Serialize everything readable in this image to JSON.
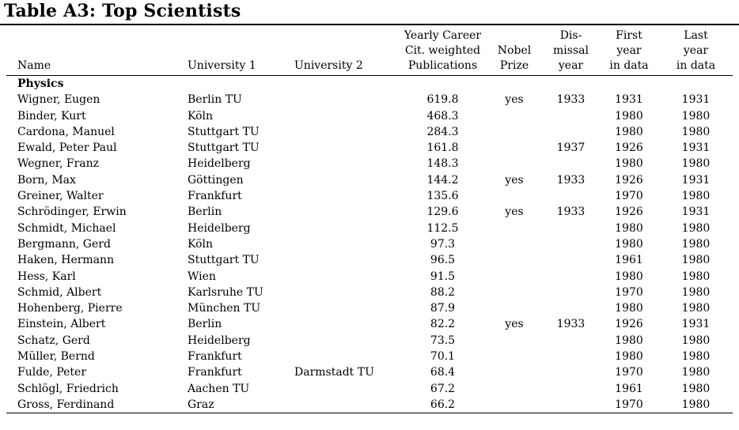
{
  "title": "Table A3: Top Scientists",
  "table": {
    "section": "Physics",
    "columns": [
      {
        "key": "name",
        "label": "Name",
        "align": "left"
      },
      {
        "key": "uni1",
        "label": "University 1",
        "align": "left"
      },
      {
        "key": "uni2",
        "label": "University 2",
        "align": "left"
      },
      {
        "key": "pubs",
        "label": "Yearly Career\nCit. weighted\nPublications",
        "align": "center"
      },
      {
        "key": "nobel",
        "label": "Nobel\nPrize",
        "align": "center"
      },
      {
        "key": "dismissal",
        "label": "Dis-\nmissal\nyear",
        "align": "center"
      },
      {
        "key": "first",
        "label": "First\nyear\nin data",
        "align": "center"
      },
      {
        "key": "last",
        "label": "Last\nyear\nin data",
        "align": "center"
      }
    ],
    "rows": [
      [
        "Wigner, Eugen",
        "Berlin TU",
        "",
        "619.8",
        "yes",
        "1933",
        "1931",
        "1931"
      ],
      [
        "Binder, Kurt",
        "Köln",
        "",
        "468.3",
        "",
        "",
        "1980",
        "1980"
      ],
      [
        "Cardona, Manuel",
        "Stuttgart TU",
        "",
        "284.3",
        "",
        "",
        "1980",
        "1980"
      ],
      [
        "Ewald, Peter Paul",
        "Stuttgart TU",
        "",
        "161.8",
        "",
        "1937",
        "1926",
        "1931"
      ],
      [
        "Wegner, Franz",
        "Heidelberg",
        "",
        "148.3",
        "",
        "",
        "1980",
        "1980"
      ],
      [
        "Born, Max",
        "Göttingen",
        "",
        "144.2",
        "yes",
        "1933",
        "1926",
        "1931"
      ],
      [
        "Greiner, Walter",
        "Frankfurt",
        "",
        "135.6",
        "",
        "",
        "1970",
        "1980"
      ],
      [
        "Schrödinger, Erwin",
        "Berlin",
        "",
        "129.6",
        "yes",
        "1933",
        "1926",
        "1931"
      ],
      [
        "Schmidt, Michael",
        "Heidelberg",
        "",
        "112.5",
        "",
        "",
        "1980",
        "1980"
      ],
      [
        "Bergmann, Gerd",
        "Köln",
        "",
        "97.3",
        "",
        "",
        "1980",
        "1980"
      ],
      [
        "Haken, Hermann",
        "Stuttgart TU",
        "",
        "96.5",
        "",
        "",
        "1961",
        "1980"
      ],
      [
        "Hess, Karl",
        "Wien",
        "",
        "91.5",
        "",
        "",
        "1980",
        "1980"
      ],
      [
        "Schmid, Albert",
        "Karlsruhe TU",
        "",
        "88.2",
        "",
        "",
        "1970",
        "1980"
      ],
      [
        "Hohenberg, Pierre",
        "München TU",
        "",
        "87.9",
        "",
        "",
        "1980",
        "1980"
      ],
      [
        "Einstein, Albert",
        "Berlin",
        "",
        "82.2",
        "yes",
        "1933",
        "1926",
        "1931"
      ],
      [
        "Schatz, Gerd",
        "Heidelberg",
        "",
        "73.5",
        "",
        "",
        "1980",
        "1980"
      ],
      [
        "Müller, Bernd",
        "Frankfurt",
        "",
        "70.1",
        "",
        "",
        "1980",
        "1980"
      ],
      [
        "Fulde, Peter",
        "Frankfurt",
        "Darmstadt TU",
        "68.4",
        "",
        "",
        "1970",
        "1980"
      ],
      [
        "Schlögl, Friedrich",
        "Aachen TU",
        "",
        "67.2",
        "",
        "",
        "1961",
        "1980"
      ],
      [
        "Gross, Ferdinand",
        "Graz",
        "",
        "66.2",
        "",
        "",
        "1970",
        "1980"
      ]
    ]
  }
}
